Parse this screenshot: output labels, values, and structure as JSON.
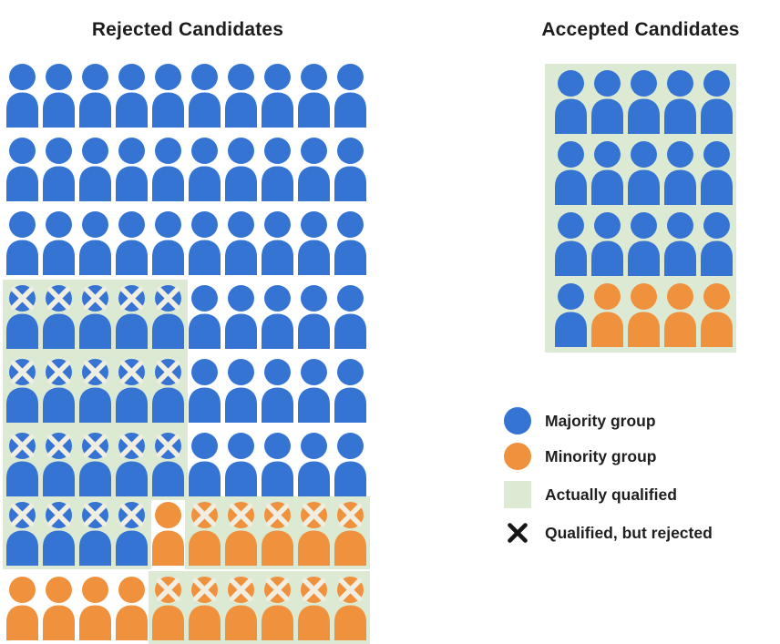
{
  "colors": {
    "majority_blue": "#3674d4",
    "minority_orange": "#f0913e",
    "qualified_green": "#dce9d3",
    "icon_x_cream": "#efeee1",
    "legend_x_black": "#161616",
    "title_text": "#1d1d1f"
  },
  "token_key": {
    "B": "majority person",
    "O": "minority person",
    "X suffix": "marked qualified-but-rejected"
  },
  "rejected_grid": {
    "title": "Rejected Candidates",
    "rows": [
      [
        "B",
        "B",
        "B",
        "B",
        "B",
        "B",
        "B",
        "B",
        "B",
        "B"
      ],
      [
        "B",
        "B",
        "B",
        "B",
        "B",
        "B",
        "B",
        "B",
        "B",
        "B"
      ],
      [
        "B",
        "B",
        "B",
        "B",
        "B",
        "B",
        "B",
        "B",
        "B",
        "B"
      ],
      [
        "BX",
        "BX",
        "BX",
        "BX",
        "BX",
        "B",
        "B",
        "B",
        "B",
        "B"
      ],
      [
        "BX",
        "BX",
        "BX",
        "BX",
        "BX",
        "B",
        "B",
        "B",
        "B",
        "B"
      ],
      [
        "BX",
        "BX",
        "BX",
        "BX",
        "BX",
        "B",
        "B",
        "B",
        "B",
        "B"
      ],
      [
        "BX",
        "BX",
        "BX",
        "BX",
        "O",
        "OX",
        "OX",
        "OX",
        "OX",
        "OX"
      ],
      [
        "O",
        "O",
        "O",
        "O",
        "OX",
        "OX",
        "OX",
        "OX",
        "OX",
        "OX"
      ]
    ],
    "qualified_regions": [
      {
        "rows": [
          4,
          6
        ],
        "cols": [
          1,
          5
        ]
      },
      {
        "rows": [
          7,
          7
        ],
        "cols": [
          1,
          4
        ]
      },
      {
        "rows": [
          7,
          7
        ],
        "cols": [
          6,
          10
        ]
      },
      {
        "rows": [
          8,
          8
        ],
        "cols": [
          5,
          10
        ]
      }
    ]
  },
  "accepted_grid": {
    "title": "Accepted Candidates",
    "rows": [
      [
        "B",
        "B",
        "B",
        "B",
        "B"
      ],
      [
        "B",
        "B",
        "B",
        "B",
        "B"
      ],
      [
        "B",
        "B",
        "B",
        "B",
        "B"
      ],
      [
        "B",
        "O",
        "O",
        "O",
        "O"
      ]
    ],
    "qualified_regions": [
      {
        "rows": [
          1,
          4
        ],
        "cols": [
          1,
          5
        ]
      }
    ]
  },
  "legend": {
    "items": [
      {
        "swatch": "majority-circle",
        "label": "Majority group"
      },
      {
        "swatch": "minority-circle",
        "label": "Minority group"
      },
      {
        "swatch": "qualified-square",
        "label": "Actually qualified"
      },
      {
        "swatch": "rejected-x",
        "label": "Qualified, but rejected"
      }
    ]
  }
}
